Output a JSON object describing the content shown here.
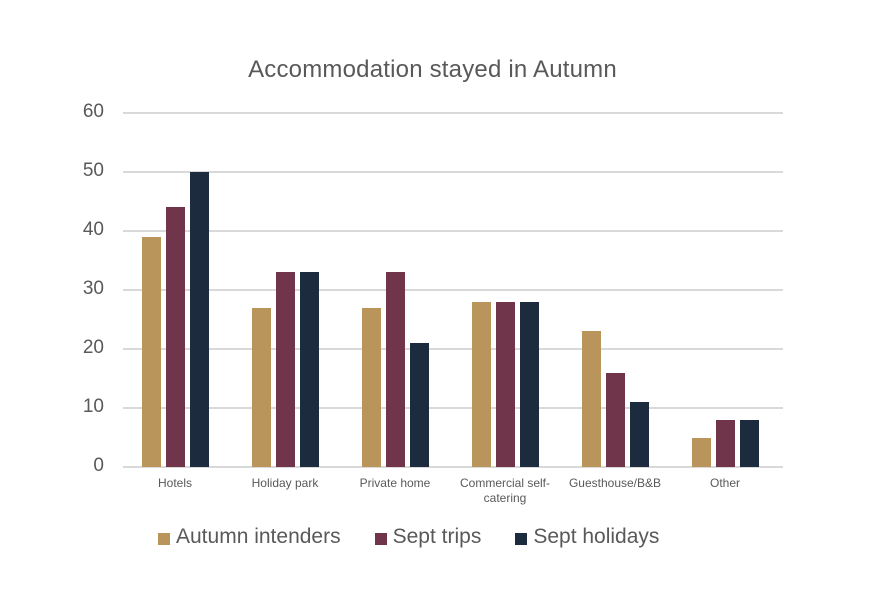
{
  "chart_data": {
    "type": "bar",
    "title": "Accommodation stayed in Autumn",
    "xlabel": "",
    "ylabel": "",
    "ylim": [
      0,
      60
    ],
    "yticks": [
      "0",
      "10",
      "20",
      "30",
      "40",
      "50",
      "60"
    ],
    "grid": true,
    "legend_position": "bottom",
    "categories": [
      "Hotels",
      "Holiday park",
      "Private home",
      "Commercial self-catering",
      "Guesthouse/B&B",
      "Other"
    ],
    "category_labels": [
      [
        "Hotels"
      ],
      [
        "Holiday park"
      ],
      [
        "Private home"
      ],
      [
        "Commercial self-",
        "catering"
      ],
      [
        "Guesthouse/B&B"
      ],
      [
        "Other"
      ]
    ],
    "series": [
      {
        "name": "Autumn intenders",
        "color": "#b9955b",
        "values": [
          39,
          27,
          27,
          28,
          23,
          5
        ]
      },
      {
        "name": "Sept trips",
        "color": "#70354a",
        "values": [
          44,
          33,
          33,
          28,
          16,
          8
        ]
      },
      {
        "name": "Sept holidays",
        "color": "#1d2b3f",
        "values": [
          50,
          33,
          21,
          28,
          11,
          8
        ]
      }
    ]
  }
}
